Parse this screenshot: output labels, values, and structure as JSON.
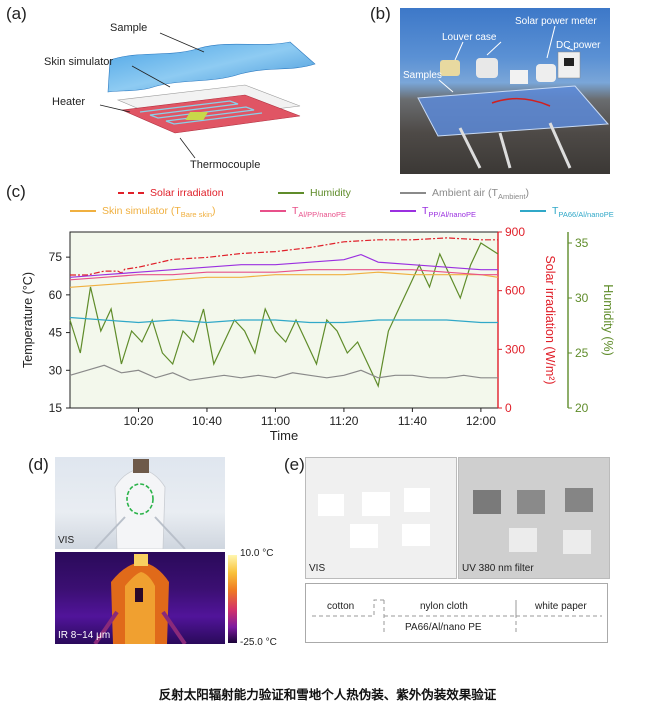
{
  "panels": {
    "a": {
      "label": "(a)",
      "sample": "Sample",
      "skin": "Skin simulator",
      "heater": "Heater",
      "thermo": "Thermocouple"
    },
    "b": {
      "label": "(b)",
      "louver": "Louver case",
      "meter": "Solar power meter",
      "dcpower": "DC power",
      "samples": "Samples"
    },
    "c": {
      "label": "(c)"
    },
    "d": {
      "label": "(d)",
      "vis": "VIS",
      "ir": "IR 8~14 μm",
      "scale_max": "10.0 °C",
      "scale_min": "-25.0 °C"
    },
    "e": {
      "label": "(e)",
      "vis": "VIS",
      "uv": "UV 380 nm filter",
      "cotton": "cotton",
      "nylon": "nylon cloth",
      "paper": "white paper",
      "pa66": "PA66/Al/nano PE"
    }
  },
  "caption": "反射太阳辐射能力验证和雪地个人热伪装、紫外伪装效果验证",
  "chart_data": {
    "type": "line",
    "x_label": "Time",
    "x_ticks": [
      "10:20",
      "10:40",
      "11:00",
      "11:20",
      "11:40",
      "12:00"
    ],
    "x_range_min": [
      0,
      125
    ],
    "legend": [
      {
        "key": "solar",
        "text": "Solar irradiation",
        "color": "#e0202a",
        "dash": "6,2,2,2"
      },
      {
        "key": "humidity",
        "text": "Humidity",
        "color": "#5f8c2a",
        "dash": ""
      },
      {
        "key": "ambient",
        "text": "Ambient air (T",
        "sub": "Ambient",
        "tail": ")",
        "color": "#8a8a8a",
        "dash": ""
      },
      {
        "key": "skin",
        "text": "Skin simulator (T",
        "sub": "Bare skin",
        "tail": ")",
        "color": "#f0b040",
        "dash": ""
      },
      {
        "key": "alpp",
        "text": "T",
        "sub": "Al/PP/nanoPE",
        "tail": "",
        "color": "#e8508a",
        "dash": ""
      },
      {
        "key": "ppal",
        "text": "T",
        "sub": "PP/Al/nanoPE",
        "tail": "",
        "color": "#9b30e0",
        "dash": ""
      },
      {
        "key": "pa66",
        "text": "T",
        "sub": "PA66/Al/nanoPE",
        "tail": "",
        "color": "#30a8c8",
        "dash": ""
      }
    ],
    "left_axis": {
      "label": "Temperature (°C)",
      "ticks": [
        15,
        30,
        45,
        60,
        75
      ],
      "range": [
        15,
        85
      ]
    },
    "solar_axis": {
      "label": "Solar irradiation (W/m²)",
      "ticks": [
        0,
        300,
        600,
        900
      ],
      "range": [
        0,
        900
      ],
      "color": "#e0202a"
    },
    "humidity_axis": {
      "label": "Humidity (%)",
      "ticks": [
        20,
        25,
        30,
        35
      ],
      "range": [
        20,
        36
      ],
      "color": "#5f8c2a"
    },
    "series": [
      {
        "key": "solar",
        "axis": "solar",
        "x": [
          0,
          5,
          10,
          14,
          15,
          16,
          20,
          30,
          40,
          50,
          60,
          70,
          80,
          90,
          100,
          110,
          120,
          125
        ],
        "y": [
          680,
          680,
          700,
          700,
          690,
          710,
          720,
          760,
          770,
          790,
          800,
          820,
          850,
          860,
          860,
          870,
          860,
          860
        ]
      },
      {
        "key": "humidity",
        "axis": "humidity",
        "x": [
          0,
          3,
          6,
          9,
          12,
          15,
          18,
          21,
          24,
          27,
          30,
          33,
          36,
          39,
          42,
          45,
          48,
          51,
          54,
          57,
          60,
          63,
          66,
          69,
          72,
          75,
          78,
          81,
          84,
          87,
          90,
          93,
          96,
          99,
          102,
          105,
          108,
          111,
          114,
          117,
          120,
          125
        ],
        "y": [
          28,
          25,
          31,
          27,
          29,
          24,
          27,
          26,
          28,
          25,
          24,
          27,
          26,
          29,
          24,
          26,
          28,
          27,
          25,
          29,
          27,
          26,
          28,
          26,
          24,
          28,
          27,
          25,
          26,
          24,
          22,
          27,
          29,
          31,
          33,
          31,
          34,
          32,
          30,
          33,
          35,
          34
        ]
      },
      {
        "key": "ambient",
        "axis": "left",
        "x": [
          0,
          5,
          10,
          15,
          20,
          25,
          30,
          35,
          40,
          45,
          50,
          55,
          60,
          65,
          70,
          75,
          80,
          85,
          90,
          95,
          100,
          105,
          110,
          115,
          120,
          125
        ],
        "y": [
          28,
          30,
          32,
          29,
          30,
          27,
          29,
          26,
          27,
          28,
          27,
          28,
          27,
          29,
          28,
          27,
          28,
          30,
          27,
          28,
          28,
          27,
          27,
          28,
          27,
          27
        ]
      },
      {
        "key": "skin",
        "axis": "left",
        "x": [
          0,
          10,
          20,
          30,
          40,
          50,
          60,
          70,
          80,
          90,
          100,
          110,
          120,
          125
        ],
        "y": [
          63,
          64,
          65,
          66,
          67,
          67,
          68,
          68,
          68,
          69,
          68,
          68,
          68,
          67
        ]
      },
      {
        "key": "alpp",
        "axis": "left",
        "x": [
          0,
          10,
          20,
          30,
          40,
          50,
          60,
          70,
          80,
          90,
          100,
          110,
          120,
          125
        ],
        "y": [
          66,
          67,
          68,
          68,
          69,
          69,
          69,
          70,
          70,
          70,
          70,
          69,
          68,
          68
        ]
      },
      {
        "key": "ppal",
        "axis": "left",
        "x": [
          0,
          10,
          20,
          30,
          40,
          50,
          60,
          70,
          80,
          85,
          90,
          100,
          110,
          120,
          125
        ],
        "y": [
          67,
          68,
          69,
          70,
          71,
          72,
          72,
          73,
          74,
          76,
          73,
          72,
          71,
          70,
          70
        ]
      },
      {
        "key": "pa66",
        "axis": "left",
        "x": [
          0,
          10,
          20,
          30,
          40,
          50,
          60,
          70,
          80,
          90,
          100,
          110,
          120,
          125
        ],
        "y": [
          51,
          50,
          49,
          50,
          49,
          50,
          50,
          49,
          49,
          50,
          50,
          50,
          49,
          49
        ]
      }
    ]
  }
}
